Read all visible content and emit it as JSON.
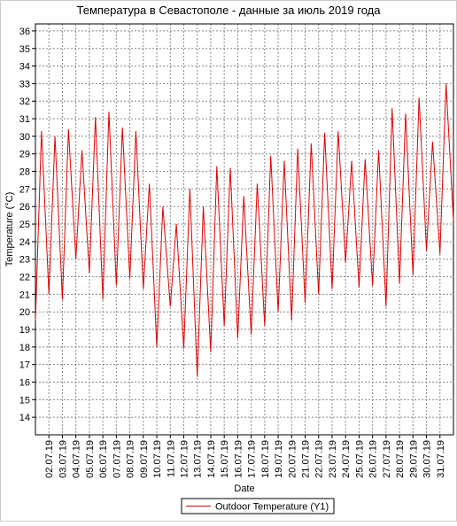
{
  "chart_data": {
    "type": "line",
    "title": "Температура в Севастополе - данные за июль 2019 года",
    "x_label": "Date",
    "y_label": "Temperature (°C)",
    "x": [
      1,
      1.45,
      2,
      2.45,
      3,
      3.45,
      4,
      4.45,
      5,
      5.45,
      6,
      6.45,
      7,
      7.45,
      8,
      8.45,
      9,
      9.45,
      10,
      10.45,
      11,
      11.45,
      12,
      12.45,
      13,
      13.45,
      14,
      14.45,
      15,
      15.45,
      16,
      16.45,
      17,
      17.45,
      18,
      18.45,
      19,
      19.45,
      20,
      20.45,
      21,
      21.45,
      22,
      22.45,
      23,
      23.45,
      24,
      24.45,
      25,
      25.45,
      26,
      26.45,
      27,
      27.45,
      28,
      28.45,
      29,
      29.45,
      30,
      30.45,
      31,
      31.45,
      32
    ],
    "series": [
      {
        "name": "Outdoor Temperature (Y1)",
        "color": "#e00000",
        "values": [
          19.5,
          30.3,
          21.0,
          30.0,
          20.7,
          30.4,
          23.0,
          29.2,
          22.2,
          31.1,
          20.7,
          31.4,
          21.5,
          30.5,
          21.9,
          30.3,
          21.3,
          27.3,
          18.0,
          26.0,
          20.3,
          25.0,
          17.9,
          27.0,
          16.3,
          26.0,
          17.7,
          28.3,
          19.2,
          28.2,
          18.5,
          26.6,
          18.7,
          27.3,
          19.2,
          28.9,
          20.0,
          28.6,
          19.5,
          29.3,
          20.5,
          29.6,
          21.0,
          30.2,
          21.3,
          30.3,
          22.8,
          28.6,
          21.4,
          28.7,
          21.5,
          29.2,
          20.3,
          31.6,
          21.6,
          31.3,
          22.1,
          32.2,
          23.5,
          29.7,
          23.3,
          33.0,
          25.2
        ]
      }
    ],
    "xlim": [
      1,
      32
    ],
    "xticks": [
      {
        "value": 2,
        "label": "02.07.19"
      },
      {
        "value": 3,
        "label": "03.07.19"
      },
      {
        "value": 4,
        "label": "04.07.19"
      },
      {
        "value": 5,
        "label": "05.07.19"
      },
      {
        "value": 6,
        "label": "06.07.19"
      },
      {
        "value": 7,
        "label": "07.07.19"
      },
      {
        "value": 8,
        "label": "08.07.19"
      },
      {
        "value": 9,
        "label": "09.07.19"
      },
      {
        "value": 10,
        "label": "10.07.19"
      },
      {
        "value": 11,
        "label": "11.07.19"
      },
      {
        "value": 12,
        "label": "12.07.19"
      },
      {
        "value": 13,
        "label": "13.07.19"
      },
      {
        "value": 14,
        "label": "14.07.19"
      },
      {
        "value": 15,
        "label": "15.07.19"
      },
      {
        "value": 16,
        "label": "16.07.19"
      },
      {
        "value": 17,
        "label": "17.07.19"
      },
      {
        "value": 18,
        "label": "18.07.19"
      },
      {
        "value": 19,
        "label": "19.07.19"
      },
      {
        "value": 20,
        "label": "20.07.19"
      },
      {
        "value": 21,
        "label": "21.07.19"
      },
      {
        "value": 22,
        "label": "22.07.19"
      },
      {
        "value": 23,
        "label": "23.07.19"
      },
      {
        "value": 24,
        "label": "24.07.19"
      },
      {
        "value": 25,
        "label": "25.07.19"
      },
      {
        "value": 26,
        "label": "26.07.19"
      },
      {
        "value": 27,
        "label": "27.07.19"
      },
      {
        "value": 28,
        "label": "28.07.19"
      },
      {
        "value": 29,
        "label": "29.07.19"
      },
      {
        "value": 30,
        "label": "30.07.19"
      },
      {
        "value": 31,
        "label": "31.07.19"
      }
    ],
    "ylim": [
      13,
      36.4
    ],
    "yticks": [
      14,
      15,
      16,
      17,
      18,
      19,
      20,
      21,
      22,
      23,
      24,
      25,
      26,
      27,
      28,
      29,
      30,
      31,
      32,
      33,
      34,
      35,
      36
    ],
    "grid": true,
    "legend": "bottom"
  }
}
